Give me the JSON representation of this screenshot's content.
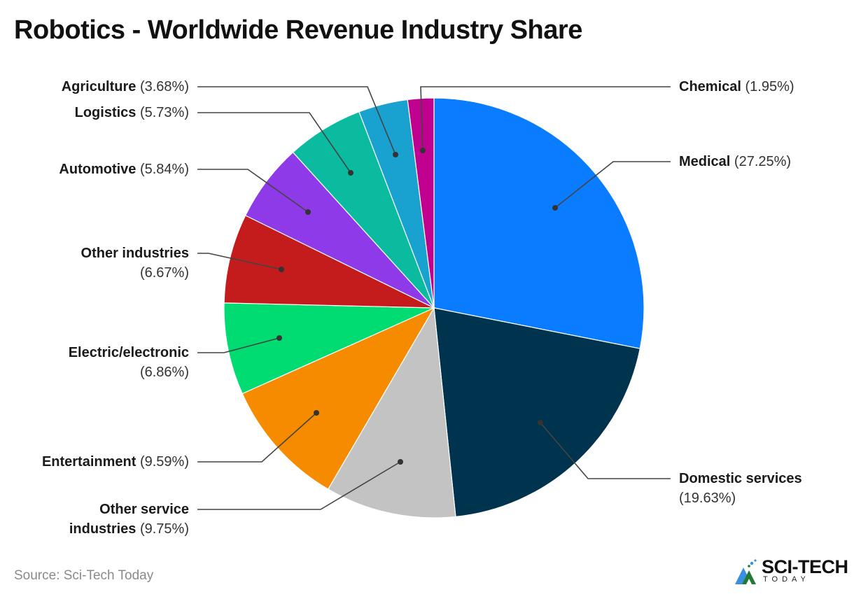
{
  "title": "Robotics - Worldwide Revenue Industry Share",
  "source": "Source: Sci-Tech Today",
  "logo": {
    "main": "SCI-TECH",
    "sub": "TODAY"
  },
  "chart_data": {
    "type": "pie",
    "title": "Robotics - Worldwide Revenue Industry Share",
    "start_angle": "12 o'clock",
    "direction": "clockwise",
    "categories": [
      "Medical",
      "Domestic services",
      "Other service industries",
      "Entertainment",
      "Electric/electronic",
      "Other industries",
      "Automotive",
      "Logistics",
      "Agriculture",
      "Chemical"
    ],
    "values": [
      27.25,
      19.63,
      9.75,
      9.59,
      6.86,
      6.67,
      5.84,
      5.73,
      3.68,
      1.95
    ],
    "colors": [
      "#0a7cff",
      "#00334e",
      "#c3c3c3",
      "#f78b00",
      "#00dc71",
      "#c41c1c",
      "#8e3ae8",
      "#0abba0",
      "#19a1cf",
      "#c0008f"
    ],
    "labels": [
      {
        "name": "Medical",
        "pct": "(27.25%)"
      },
      {
        "name": "Domestic services",
        "pct": "(19.63%)"
      },
      {
        "name": "Other service industries",
        "pct": "(9.75%)"
      },
      {
        "name": "Entertainment",
        "pct": "(9.59%)"
      },
      {
        "name": "Electric/electronic",
        "pct": "(6.86%)"
      },
      {
        "name": "Other industries",
        "pct": "(6.67%)"
      },
      {
        "name": "Automotive",
        "pct": "(5.84%)"
      },
      {
        "name": "Logistics",
        "pct": "(5.73%)"
      },
      {
        "name": "Agriculture",
        "pct": "(3.68%)"
      },
      {
        "name": "Chemical",
        "pct": "(1.95%)"
      }
    ],
    "legend": "inline leader-line labels"
  }
}
